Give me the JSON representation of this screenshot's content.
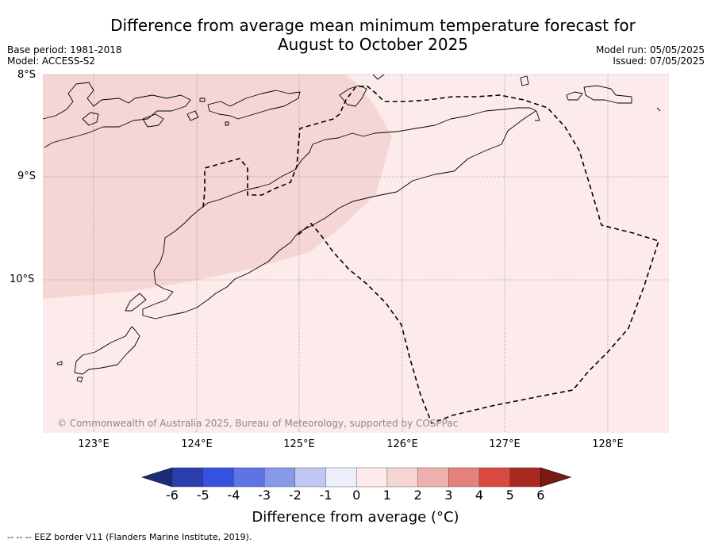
{
  "title_line1": "Difference from average mean minimum temperature forecast for",
  "title_line2": "August to October 2025",
  "base_period": "Base period: 1981-2018",
  "model": "Model: ACCESS-S2",
  "model_run": "Model run: 05/05/2025",
  "issued": "Issued: 07/05/2025",
  "copyright": "© Commonwealth of Australia 2025, Bureau of Meteorology, supported by COSPPac",
  "latitudes": [
    "8°S",
    "9°S",
    "10°S"
  ],
  "longitudes": [
    "123°E",
    "124°E",
    "125°E",
    "126°E",
    "127°E",
    "128°E"
  ],
  "colorbar": {
    "ticks": [
      "-6",
      "-5",
      "-4",
      "-3",
      "-2",
      "-1",
      "0",
      "1",
      "2",
      "3",
      "4",
      "5",
      "6"
    ],
    "colors": [
      "#1d2c7a",
      "#2a3fad",
      "#3551e0",
      "#5c74e6",
      "#8899ea",
      "#bfc7f2",
      "#eceefb",
      "#fcebea",
      "#f6d6d5",
      "#efb1ad",
      "#e6807a",
      "#db4a41",
      "#a92a22",
      "#7a1a17"
    ],
    "label": "Difference from average (°C)"
  },
  "field_colors": {
    "band_0_1": "#fcebea",
    "band_1_2": "#f6d6d5"
  },
  "footnote": "--  --  -- EEZ border V11 (Flanders Marine Institute, 2019)."
}
